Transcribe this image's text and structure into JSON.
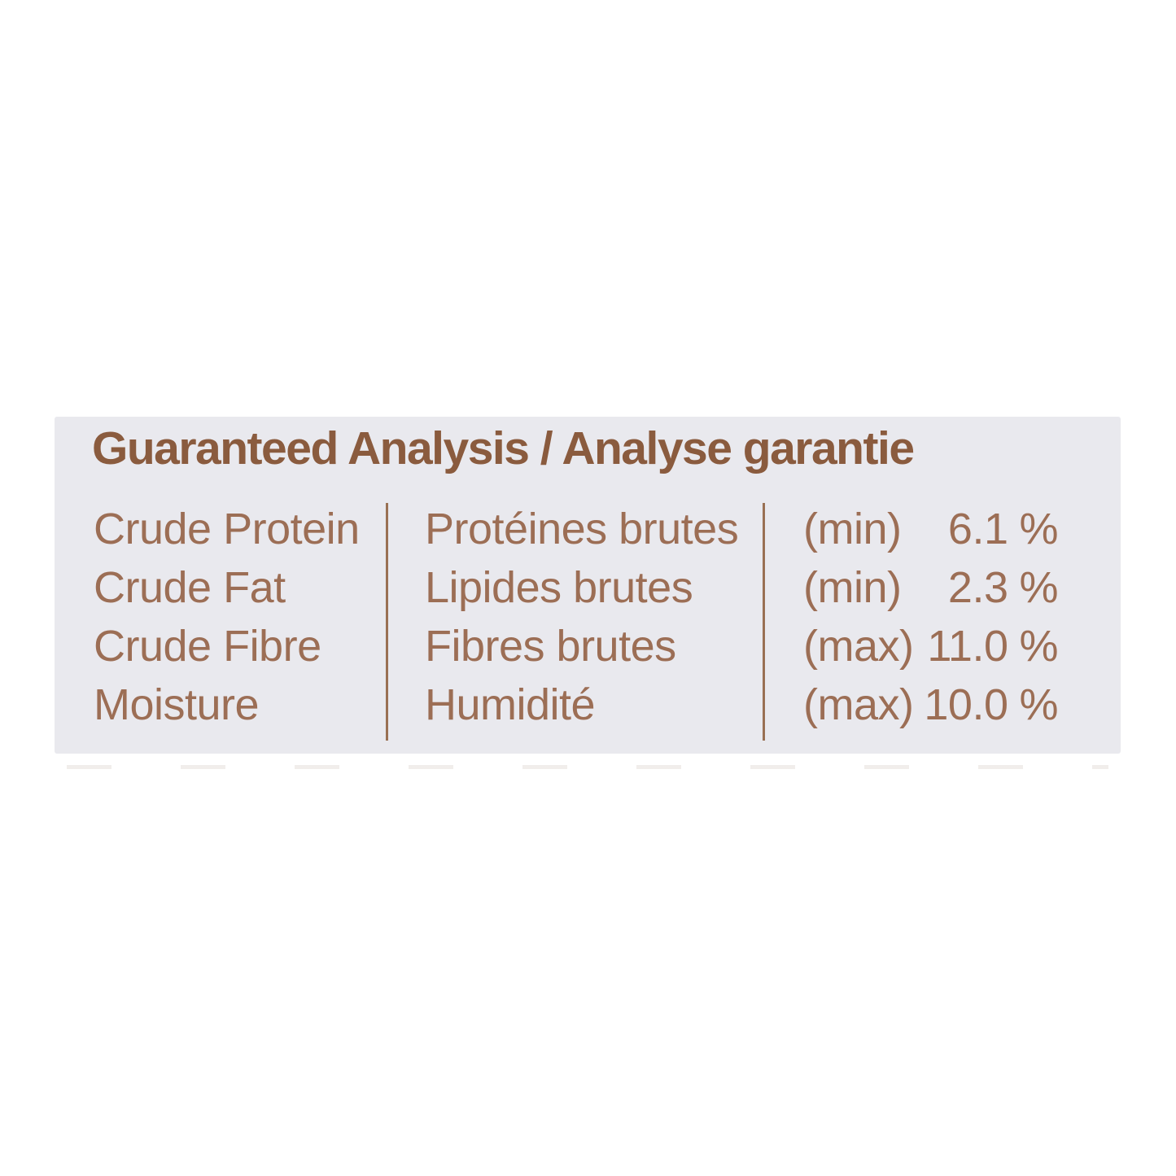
{
  "panel": {
    "title": "Guaranteed Analysis / Analyse garantie",
    "rows": [
      {
        "en": "Crude Protein",
        "fr": "Protéines brutes",
        "limit": "(min)",
        "value": "6.1",
        "unit": "%"
      },
      {
        "en": "Crude Fat",
        "fr": "Lipides brutes",
        "limit": "(min)",
        "value": "2.3",
        "unit": "%"
      },
      {
        "en": "Crude Fibre",
        "fr": "Fibres brutes",
        "limit": "(max)",
        "value": "11.0",
        "unit": "%"
      },
      {
        "en": "Moisture",
        "fr": "Humidité",
        "limit": "(max)",
        "value": "10.0",
        "unit": "%"
      }
    ],
    "colors": {
      "page_background": "#ffffff",
      "panel_background": "#e9e9ee",
      "title_text": "#8a5b3e",
      "body_text": "#9c6e55",
      "divider": "#997053"
    }
  }
}
